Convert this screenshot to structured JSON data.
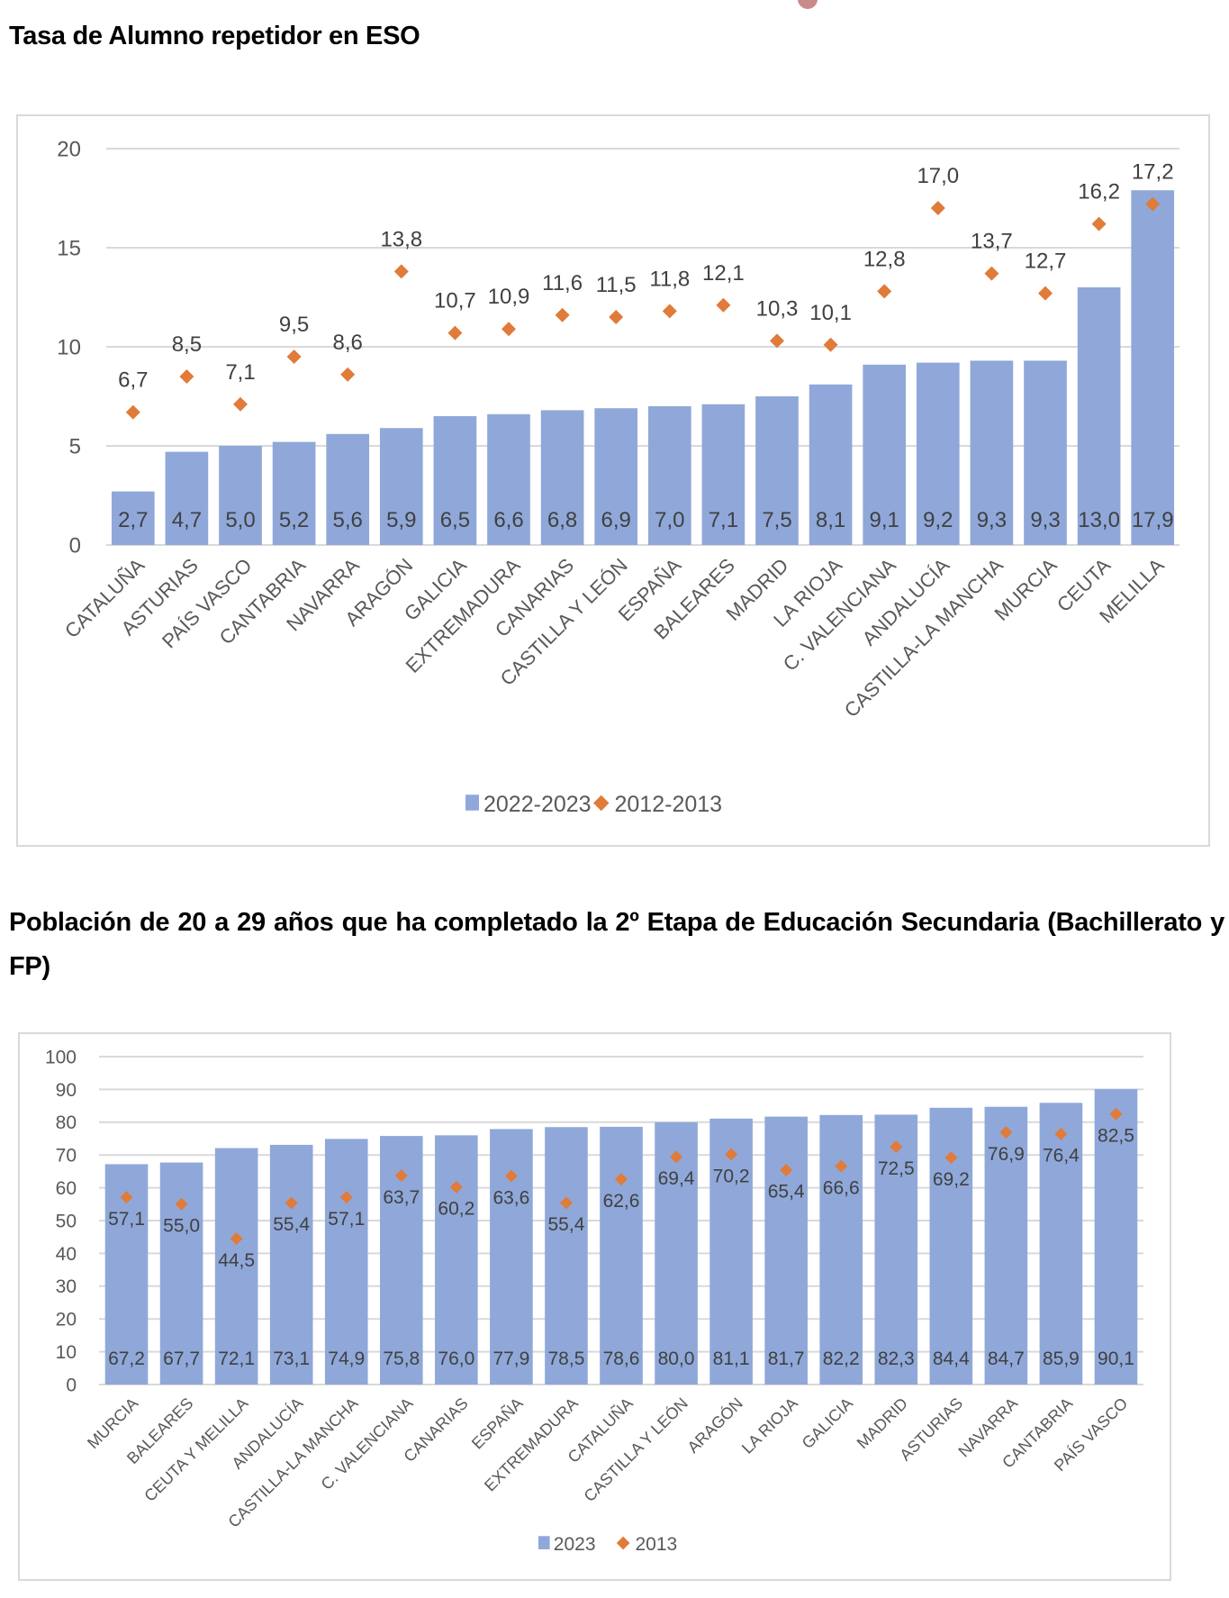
{
  "page": {
    "heading_1": "Tasa de Alumno repetidor en ESO",
    "heading_2": "Población de 20 a 29 años que ha completado la 2º Etapa de Educación Secundaria (Bachillerato y FP)"
  },
  "colors": {
    "bar": "#8FA8D9",
    "marker": "#E07B39",
    "grid": "#D9D9D9",
    "axis_text": "#595959",
    "label_text": "#404040"
  },
  "chart_data": [
    {
      "type": "bar",
      "title": "Tasa de Alumno repetidor en ESO",
      "xlabel": "",
      "ylabel": "",
      "ylim": [
        0,
        20
      ],
      "yticks": [
        0,
        5,
        10,
        15,
        20
      ],
      "grid": true,
      "legend_position": "bottom",
      "categories": [
        "CATALUÑA",
        "ASTURIAS",
        "PAÍS VASCO",
        "CANTABRIA",
        "NAVARRA",
        "ARAGÓN",
        "GALICIA",
        "EXTREMADURA",
        "CANARIAS",
        "CASTILLA Y LEÓN",
        "ESPAÑA",
        "BALEARES",
        "MADRID",
        "LA RIOJA",
        "C. VALENCIANA",
        "ANDALUCÍA",
        "CASTILLA-LA MANCHA",
        "MURCIA",
        "CEUTA",
        "MELILLA"
      ],
      "series": [
        {
          "name": "2022-2023",
          "kind": "bar",
          "values": [
            2.7,
            4.7,
            5.0,
            5.2,
            5.6,
            5.9,
            6.5,
            6.6,
            6.8,
            6.9,
            7.0,
            7.1,
            7.5,
            8.1,
            9.1,
            9.2,
            9.3,
            9.3,
            13.0,
            17.9
          ],
          "labels": [
            "2,7",
            "4,7",
            "5,0",
            "5,2",
            "5,6",
            "5,9",
            "6,5",
            "6,6",
            "6,8",
            "6,9",
            "7,0",
            "7,1",
            "7,5",
            "8,1",
            "9,1",
            "9,2",
            "9,3",
            "9,3",
            "13,0",
            "17,9"
          ]
        },
        {
          "name": "2012-2013",
          "kind": "marker",
          "values": [
            6.7,
            8.5,
            7.1,
            9.5,
            8.6,
            13.8,
            10.7,
            10.9,
            11.6,
            11.5,
            11.8,
            12.1,
            10.3,
            10.1,
            12.8,
            17.0,
            13.7,
            12.7,
            16.2,
            17.2
          ],
          "labels": [
            "6,7",
            "8,5",
            "7,1",
            "9,5",
            "8,6",
            "13,8",
            "10,7",
            "10,9",
            "11,6",
            "11,5",
            "11,8",
            "12,1",
            "10,3",
            "10,1",
            "12,8",
            "17,0",
            "13,7",
            "12,7",
            "16,2",
            "17,2"
          ]
        }
      ]
    },
    {
      "type": "bar",
      "title": "Población de 20 a 29 años que ha completado la 2º Etapa de Educación Secundaria (Bachillerato y FP)",
      "xlabel": "",
      "ylabel": "",
      "ylim": [
        0,
        100
      ],
      "yticks": [
        0,
        10,
        20,
        30,
        40,
        50,
        60,
        70,
        80,
        90,
        100
      ],
      "grid": true,
      "legend_position": "bottom",
      "categories": [
        "MURCIA",
        "BALEARES",
        "CEUTA Y MELILLA",
        "ANDALUCÍA",
        "CASTILLA-LA MANCHA",
        "C. VALENCIANA",
        "CANARIAS",
        "ESPAÑA",
        "EXTREMADURA",
        "CATALUÑA",
        "CASTILLA Y LEÓN",
        "ARAGÓN",
        "LA RIOJA",
        "GALICIA",
        "MADRID",
        "ASTURIAS",
        "NAVARRA",
        "CANTABRIA",
        "PAÍS VASCO"
      ],
      "series": [
        {
          "name": "2023",
          "kind": "bar",
          "values": [
            67.2,
            67.7,
            72.1,
            73.1,
            74.9,
            75.8,
            76.0,
            77.9,
            78.5,
            78.6,
            80.0,
            81.1,
            81.7,
            82.2,
            82.3,
            84.4,
            84.7,
            85.9,
            90.1
          ],
          "labels": [
            "67,2",
            "67,7",
            "72,1",
            "73,1",
            "74,9",
            "75,8",
            "76,0",
            "77,9",
            "78,5",
            "78,6",
            "80,0",
            "81,1",
            "81,7",
            "82,2",
            "82,3",
            "84,4",
            "84,7",
            "85,9",
            "90,1"
          ]
        },
        {
          "name": "2013",
          "kind": "marker",
          "values": [
            57.1,
            55.0,
            44.5,
            55.4,
            57.1,
            63.7,
            60.2,
            63.6,
            55.4,
            62.6,
            69.4,
            70.2,
            65.4,
            66.6,
            72.5,
            69.2,
            76.9,
            76.4,
            82.5
          ],
          "labels": [
            "57,1",
            "55,0",
            "44,5",
            "55,4",
            "57,1",
            "63,7",
            "60,2",
            "63,6",
            "55,4",
            "62,6",
            "69,4",
            "70,2",
            "65,4",
            "66,6",
            "72,5",
            "69,2",
            "76,9",
            "76,4",
            "82,5"
          ]
        }
      ]
    }
  ]
}
